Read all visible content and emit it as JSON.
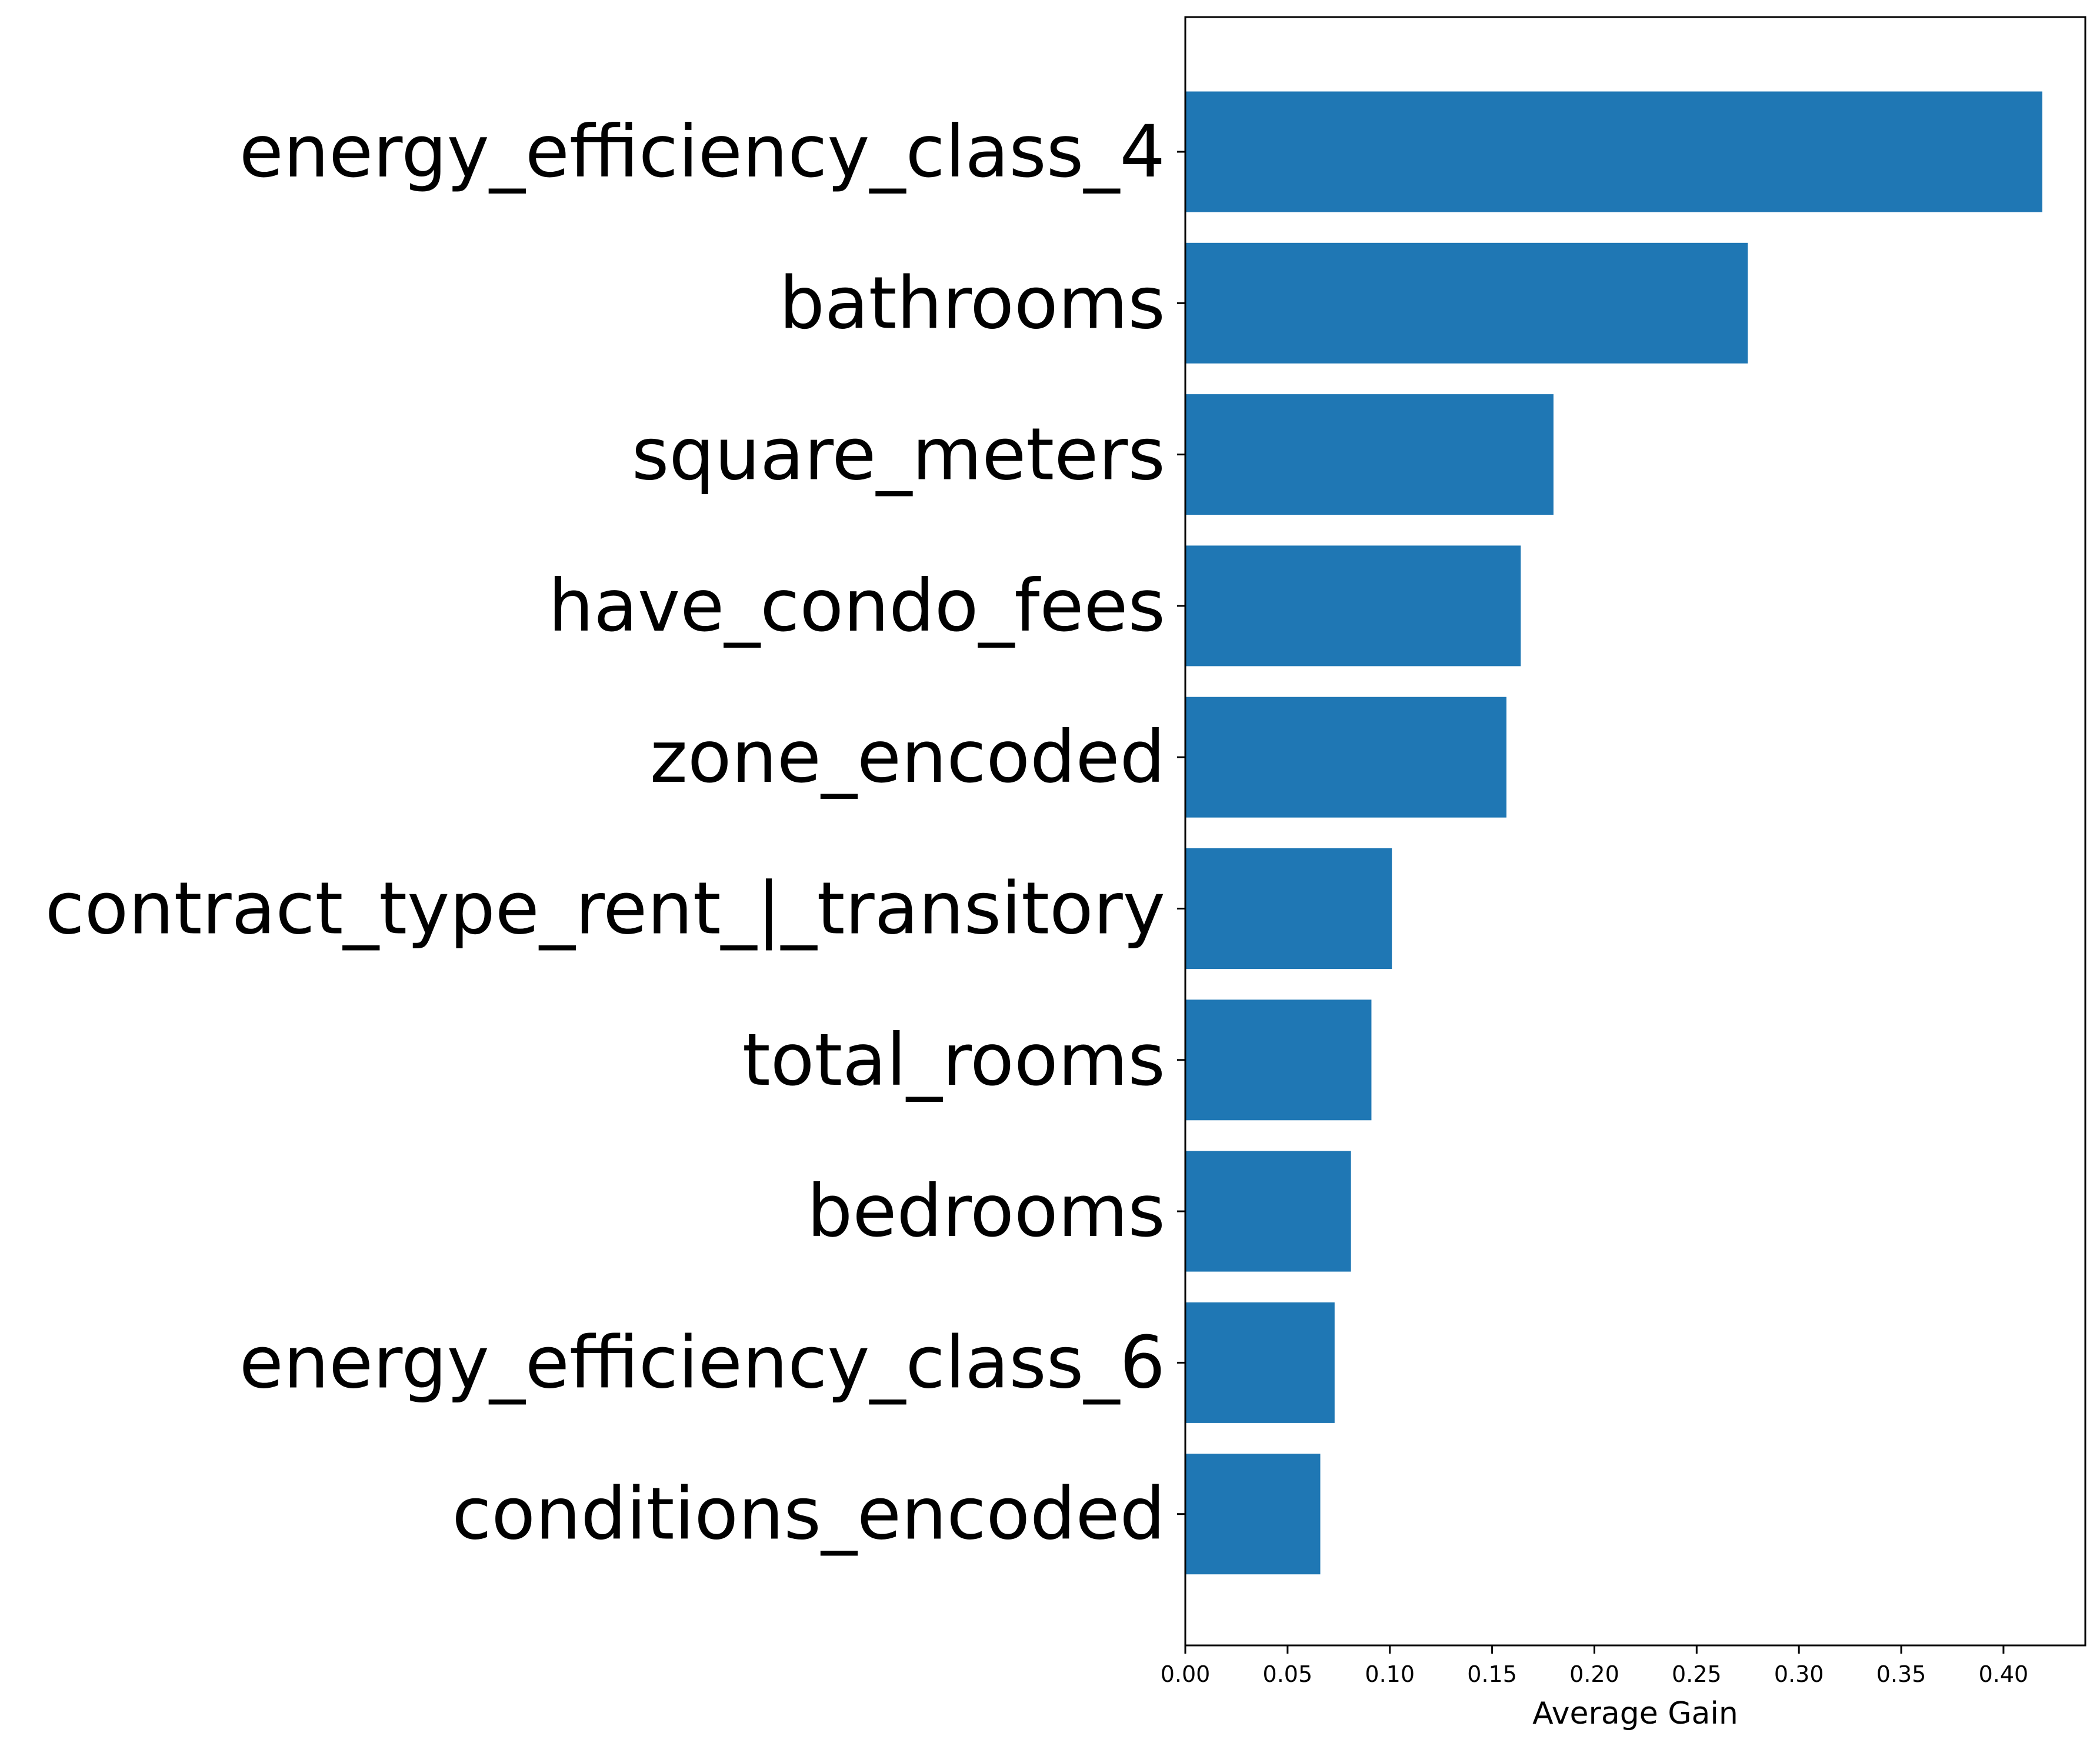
{
  "chart_data": {
    "type": "bar",
    "orientation": "horizontal",
    "categories": [
      "energy_efficiency_class_4",
      "bathrooms",
      "square_meters",
      "have_condo_fees",
      "zone_encoded",
      "contract_type_rent_|_transitory",
      "total_rooms",
      "bedrooms",
      "energy_efficiency_class_6",
      "conditions_encoded"
    ],
    "values": [
      0.419,
      0.275,
      0.18,
      0.164,
      0.157,
      0.101,
      0.091,
      0.081,
      0.073,
      0.066
    ],
    "xlabel": "Average Gain",
    "ylabel": "",
    "xlim": [
      0.0,
      0.44
    ],
    "xticks": [
      "0.00",
      "0.05",
      "0.10",
      "0.15",
      "0.20",
      "0.25",
      "0.30",
      "0.35",
      "0.40"
    ],
    "grid": false,
    "bar_color": "#1f77b4"
  }
}
